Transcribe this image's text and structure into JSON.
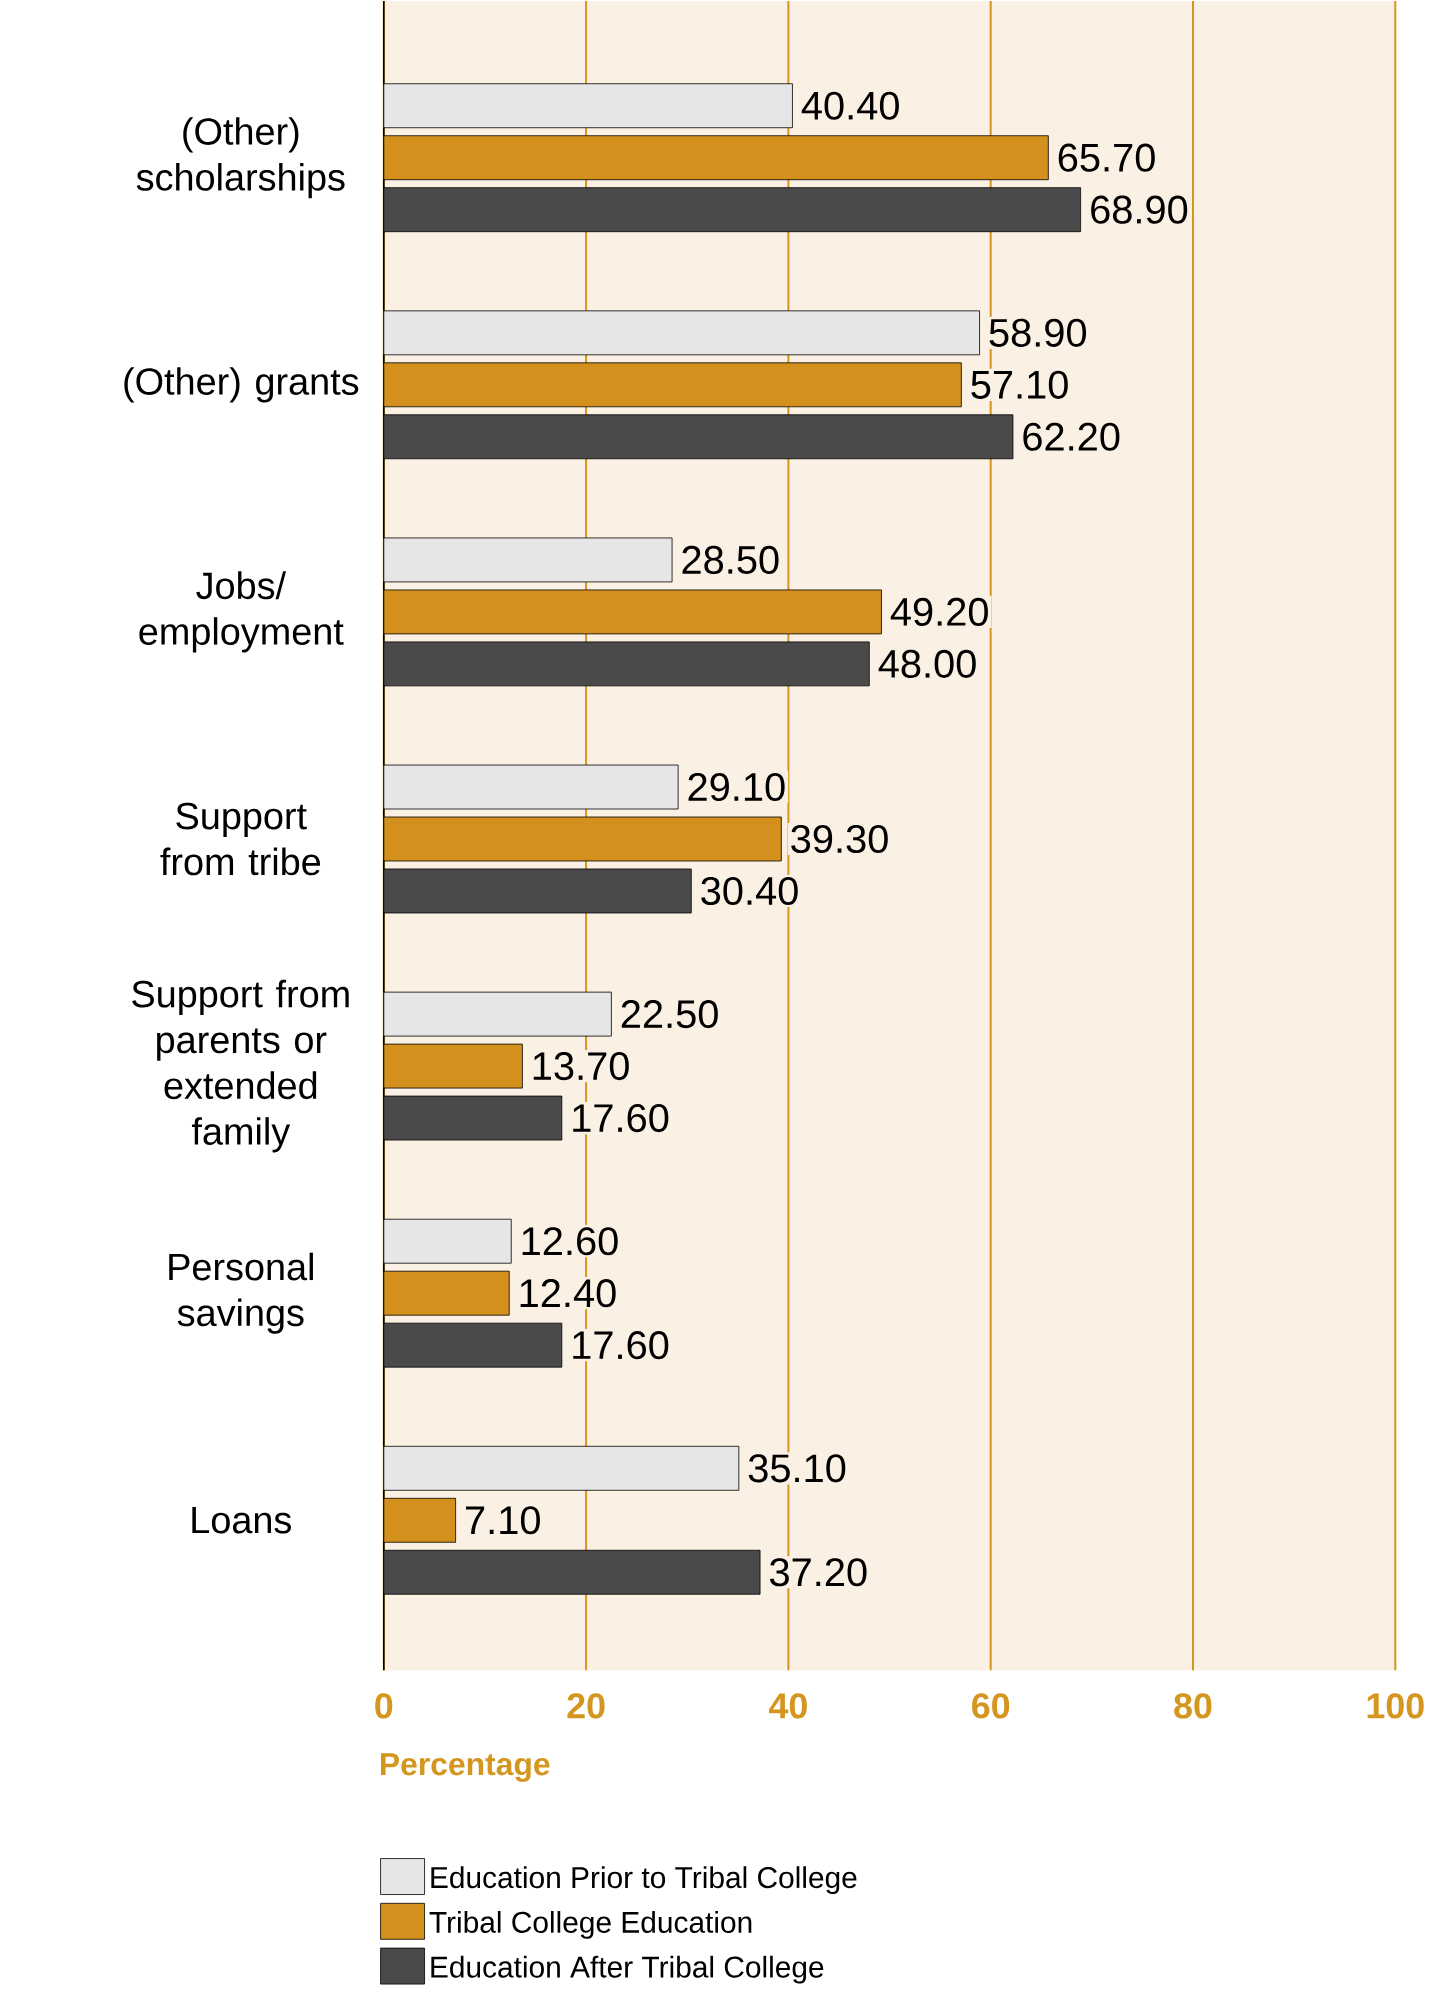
{
  "chart_data": {
    "type": "bar",
    "orientation": "horizontal",
    "xlabel": "Percentage",
    "categories": [
      "(Other) scholarships",
      "(Other) grants",
      "Jobs/ employment",
      "Support from tribe",
      "Support from parents or extended family",
      "Personal savings",
      "Loans"
    ],
    "series": [
      {
        "name": "Education Prior to Tribal College",
        "color": "#e6e6e6",
        "values": [
          40.4,
          58.9,
          28.5,
          29.1,
          22.5,
          12.6,
          35.1
        ],
        "value_labels": [
          "40.40",
          "58.90",
          "28.50",
          "29.10",
          "22.50",
          "12.60",
          "35.10"
        ]
      },
      {
        "name": "Tribal College Education",
        "color": "#d4901c",
        "values": [
          65.7,
          57.1,
          49.2,
          39.3,
          13.7,
          12.4,
          7.1
        ],
        "value_labels": [
          "65.70",
          "57.10",
          "49.20",
          "39.30",
          "13.70",
          "12.40",
          "7.10"
        ]
      },
      {
        "name": "Education After Tribal College",
        "color": "#4a4a4a",
        "values": [
          68.9,
          62.2,
          48.0,
          30.4,
          17.6,
          17.6,
          37.2
        ],
        "value_labels": [
          "68.90",
          "62.20",
          "48.00",
          "30.40",
          "17.60",
          "17.60",
          "37.20"
        ]
      }
    ],
    "xlim": [
      0,
      100
    ],
    "xticks": [
      0,
      20,
      40,
      60,
      80,
      100
    ],
    "grid": "x",
    "legend": "bottom"
  }
}
